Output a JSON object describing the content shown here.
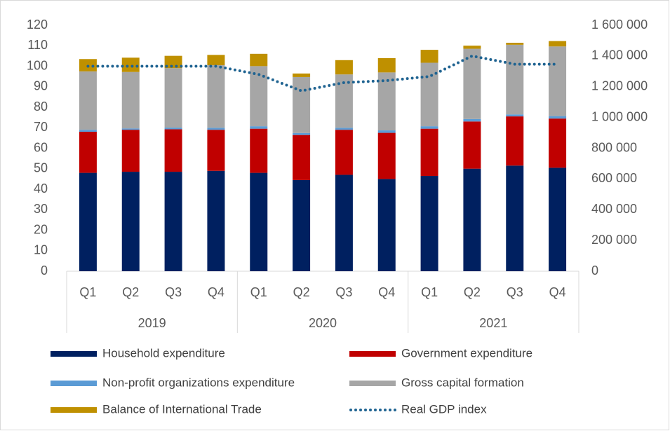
{
  "chart_data": {
    "type": "bar",
    "stacked": true,
    "categories": [
      "Q1",
      "Q2",
      "Q3",
      "Q4",
      "Q1",
      "Q2",
      "Q3",
      "Q4",
      "Q1",
      "Q2",
      "Q3",
      "Q4"
    ],
    "category_groups": [
      "2019",
      "2020",
      "2021"
    ],
    "ylim": [
      0,
      120
    ],
    "yticks": [
      0,
      10,
      20,
      30,
      40,
      50,
      60,
      70,
      80,
      90,
      100,
      110,
      120
    ],
    "y2lim": [
      0,
      1600000
    ],
    "y2ticks": [
      0,
      {
        "value": 200000,
        "label": "200 000"
      },
      {
        "value": 400000,
        "label": "400 000"
      },
      {
        "value": 600000,
        "label": "600 000"
      },
      {
        "value": 800000,
        "label": "800 000"
      },
      {
        "value": 1000000,
        "label": "1 000 000"
      },
      {
        "value": 1200000,
        "label": "1 200 000"
      },
      {
        "value": 1400000,
        "label": "1 400 000"
      },
      {
        "value": 1600000,
        "label": "1 600 000"
      }
    ],
    "grid": false,
    "series": [
      {
        "name": "Household expenditure",
        "color": "#002060",
        "axis": "y2",
        "type": "bar",
        "values": [
          640000,
          647000,
          647000,
          653000,
          640000,
          593000,
          627000,
          600000,
          620000,
          667000,
          687000,
          673000
        ]
      },
      {
        "name": "Government expenditure",
        "color": "#c00000",
        "axis": "y2",
        "type": "bar",
        "values": [
          267000,
          273000,
          276000,
          267000,
          287000,
          293000,
          293000,
          300000,
          307000,
          307000,
          320000,
          320000
        ]
      },
      {
        "name": "Non-profit organizations expenditure",
        "color": "#5b9bd5",
        "axis": "y2",
        "type": "bar",
        "values": [
          13000,
          9000,
          11000,
          13000,
          16000,
          13000,
          13000,
          16000,
          16000,
          16000,
          13000,
          16000
        ]
      },
      {
        "name": "Gross capital formation",
        "color": "#a6a6a6",
        "axis": "y2",
        "type": "bar",
        "values": [
          380000,
          367000,
          387000,
          407000,
          391000,
          364000,
          347000,
          377000,
          413000,
          457000,
          453000,
          453000
        ]
      },
      {
        "name": "Balance of International Trade",
        "color": "#bf9000",
        "axis": "y2",
        "type": "bar",
        "values": [
          80000,
          93000,
          80000,
          67000,
          80000,
          23000,
          93000,
          93000,
          84000,
          20000,
          13000,
          35000
        ]
      },
      {
        "name": "Real GDP index",
        "color": "#1f6391",
        "axis": "y",
        "type": "line",
        "style": "dotted",
        "values": [
          100,
          100,
          100,
          100,
          96,
          88,
          92,
          93,
          95,
          105,
          101,
          101
        ]
      }
    ]
  }
}
